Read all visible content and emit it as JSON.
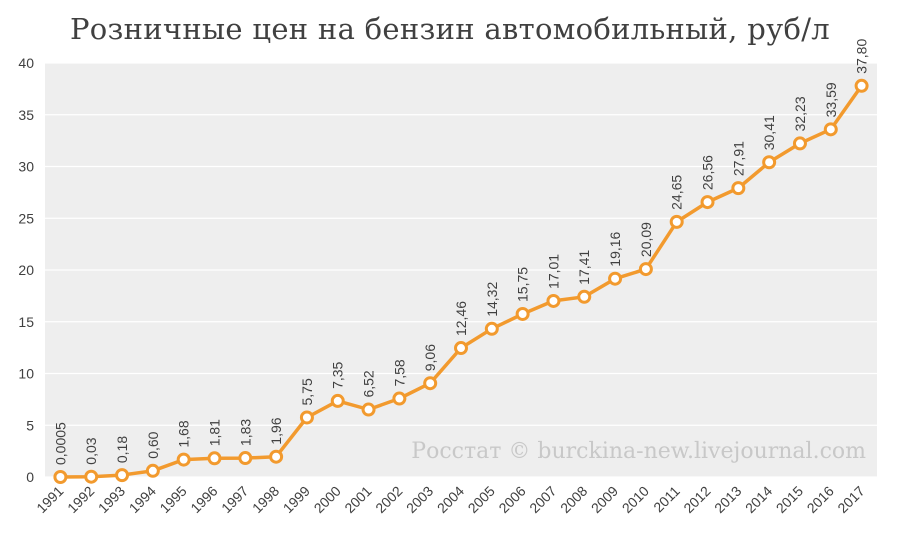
{
  "chart_data": {
    "type": "line",
    "title": "Розничные цен на бензин автомобильный, руб/л",
    "watermark": "Росстат © burckina-new.livejournal.com",
    "ylim": [
      0,
      40
    ],
    "yticks": [
      "0",
      "5",
      "10",
      "15",
      "20",
      "25",
      "30",
      "35",
      "40"
    ],
    "grid": true,
    "categories": [
      "1991",
      "1992",
      "1993",
      "1994",
      "1995",
      "1996",
      "1997",
      "1998",
      "1999",
      "2000",
      "2001",
      "2002",
      "2003",
      "2004",
      "2005",
      "2006",
      "2007",
      "2008",
      "2009",
      "2010",
      "2011",
      "2012",
      "2013",
      "2014",
      "2015",
      "2016",
      "2017"
    ],
    "values": [
      0.0005,
      0.03,
      0.18,
      0.6,
      1.68,
      1.81,
      1.83,
      1.96,
      5.75,
      7.35,
      6.52,
      7.58,
      9.06,
      12.46,
      14.32,
      15.75,
      17.01,
      17.41,
      19.16,
      20.09,
      24.65,
      26.56,
      27.91,
      30.41,
      32.23,
      33.59,
      37.8
    ],
    "data_labels": [
      "0,0005",
      "0,03",
      "0,18",
      "0,60",
      "1,68",
      "1,81",
      "1,83",
      "1,96",
      "5,75",
      "7,35",
      "6,52",
      "7,58",
      "9,06",
      "12,46",
      "14,32",
      "15,75",
      "17,01",
      "17,41",
      "19,16",
      "20,09",
      "24,65",
      "26,56",
      "27,91",
      "30,41",
      "32,23",
      "33,59",
      "37,80"
    ],
    "colors": {
      "line": "#f29a2e",
      "marker_fill": "#ffffff",
      "grid": "#ffffff",
      "plot_bg": "#eeeeee"
    }
  }
}
